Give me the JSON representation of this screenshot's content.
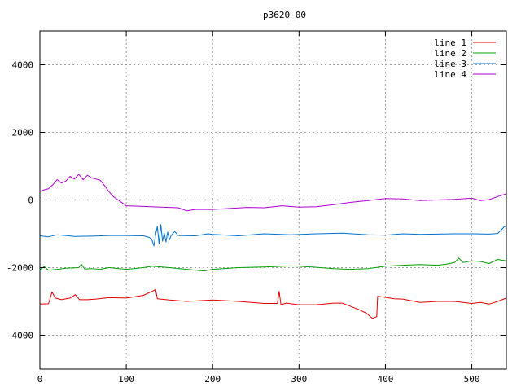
{
  "chart_data": {
    "type": "line",
    "title": "p3620_00",
    "xlabel": "",
    "ylabel": "",
    "xlim": [
      0,
      540
    ],
    "ylim": [
      -5000,
      5000
    ],
    "x_ticks": [
      0,
      100,
      200,
      300,
      400,
      500
    ],
    "y_ticks": [
      -4000,
      -2000,
      0,
      2000,
      4000
    ],
    "grid": true,
    "legend_position": "top-right",
    "series": [
      {
        "name": "line 1",
        "color": "#e00000",
        "points": [
          [
            0,
            -3080
          ],
          [
            10,
            -3070
          ],
          [
            14,
            -2720
          ],
          [
            18,
            -2900
          ],
          [
            25,
            -2950
          ],
          [
            35,
            -2900
          ],
          [
            41,
            -2800
          ],
          [
            46,
            -2950
          ],
          [
            55,
            -2950
          ],
          [
            65,
            -2930
          ],
          [
            80,
            -2890
          ],
          [
            100,
            -2900
          ],
          [
            110,
            -2860
          ],
          [
            120,
            -2820
          ],
          [
            130,
            -2700
          ],
          [
            134,
            -2650
          ],
          [
            136,
            -2920
          ],
          [
            150,
            -2960
          ],
          [
            170,
            -3000
          ],
          [
            200,
            -2960
          ],
          [
            230,
            -3000
          ],
          [
            260,
            -3060
          ],
          [
            275,
            -3060
          ],
          [
            277,
            -2700
          ],
          [
            279,
            -3100
          ],
          [
            285,
            -3050
          ],
          [
            300,
            -3100
          ],
          [
            320,
            -3100
          ],
          [
            340,
            -3050
          ],
          [
            350,
            -3050
          ],
          [
            360,
            -3150
          ],
          [
            370,
            -3250
          ],
          [
            378,
            -3350
          ],
          [
            385,
            -3500
          ],
          [
            390,
            -3450
          ],
          [
            391,
            -2850
          ],
          [
            395,
            -2860
          ],
          [
            410,
            -2920
          ],
          [
            420,
            -2930
          ],
          [
            440,
            -3030
          ],
          [
            460,
            -3000
          ],
          [
            480,
            -3000
          ],
          [
            500,
            -3060
          ],
          [
            510,
            -3030
          ],
          [
            520,
            -3080
          ],
          [
            530,
            -3000
          ],
          [
            540,
            -2900
          ]
        ]
      },
      {
        "name": "line 2",
        "color": "#00a000",
        "points": [
          [
            0,
            -2060
          ],
          [
            5,
            -1970
          ],
          [
            10,
            -2080
          ],
          [
            20,
            -2050
          ],
          [
            30,
            -2020
          ],
          [
            45,
            -2000
          ],
          [
            48,
            -1900
          ],
          [
            52,
            -2040
          ],
          [
            60,
            -2030
          ],
          [
            70,
            -2050
          ],
          [
            80,
            -2000
          ],
          [
            100,
            -2050
          ],
          [
            120,
            -2000
          ],
          [
            130,
            -1960
          ],
          [
            150,
            -2000
          ],
          [
            170,
            -2050
          ],
          [
            190,
            -2100
          ],
          [
            200,
            -2050
          ],
          [
            230,
            -2000
          ],
          [
            260,
            -1980
          ],
          [
            290,
            -1950
          ],
          [
            300,
            -1960
          ],
          [
            320,
            -1990
          ],
          [
            340,
            -2030
          ],
          [
            360,
            -2050
          ],
          [
            380,
            -2030
          ],
          [
            400,
            -1960
          ],
          [
            420,
            -1930
          ],
          [
            440,
            -1910
          ],
          [
            460,
            -1930
          ],
          [
            470,
            -1900
          ],
          [
            480,
            -1850
          ],
          [
            485,
            -1720
          ],
          [
            490,
            -1850
          ],
          [
            500,
            -1800
          ],
          [
            510,
            -1820
          ],
          [
            520,
            -1880
          ],
          [
            530,
            -1760
          ],
          [
            540,
            -1800
          ]
        ]
      },
      {
        "name": "line 3",
        "color": "#0070d0",
        "points": [
          [
            0,
            -1060
          ],
          [
            10,
            -1090
          ],
          [
            20,
            -1030
          ],
          [
            30,
            -1050
          ],
          [
            40,
            -1080
          ],
          [
            60,
            -1070
          ],
          [
            80,
            -1050
          ],
          [
            100,
            -1050
          ],
          [
            120,
            -1060
          ],
          [
            127,
            -1110
          ],
          [
            130,
            -1200
          ],
          [
            132,
            -1360
          ],
          [
            134,
            -1020
          ],
          [
            136,
            -780
          ],
          [
            138,
            -1300
          ],
          [
            140,
            -730
          ],
          [
            142,
            -1220
          ],
          [
            144,
            -980
          ],
          [
            146,
            -1240
          ],
          [
            148,
            -950
          ],
          [
            150,
            -1180
          ],
          [
            152,
            -1050
          ],
          [
            156,
            -930
          ],
          [
            160,
            -1050
          ],
          [
            180,
            -1060
          ],
          [
            195,
            -1000
          ],
          [
            200,
            -1020
          ],
          [
            230,
            -1060
          ],
          [
            260,
            -1000
          ],
          [
            290,
            -1030
          ],
          [
            320,
            -1000
          ],
          [
            350,
            -980
          ],
          [
            380,
            -1030
          ],
          [
            400,
            -1040
          ],
          [
            420,
            -1000
          ],
          [
            440,
            -1020
          ],
          [
            460,
            -1010
          ],
          [
            480,
            -1000
          ],
          [
            500,
            -1000
          ],
          [
            520,
            -1010
          ],
          [
            530,
            -990
          ],
          [
            538,
            -780
          ],
          [
            540,
            -800
          ]
        ]
      },
      {
        "name": "line 4",
        "color": "#b000d0",
        "points": [
          [
            0,
            250
          ],
          [
            5,
            300
          ],
          [
            10,
            330
          ],
          [
            15,
            450
          ],
          [
            20,
            600
          ],
          [
            25,
            500
          ],
          [
            30,
            560
          ],
          [
            35,
            700
          ],
          [
            40,
            620
          ],
          [
            45,
            760
          ],
          [
            50,
            600
          ],
          [
            55,
            730
          ],
          [
            60,
            650
          ],
          [
            65,
            620
          ],
          [
            70,
            580
          ],
          [
            75,
            420
          ],
          [
            80,
            240
          ],
          [
            85,
            100
          ],
          [
            90,
            10
          ],
          [
            95,
            -80
          ],
          [
            100,
            -170
          ],
          [
            110,
            -180
          ],
          [
            120,
            -190
          ],
          [
            140,
            -210
          ],
          [
            160,
            -230
          ],
          [
            170,
            -320
          ],
          [
            180,
            -280
          ],
          [
            200,
            -280
          ],
          [
            220,
            -250
          ],
          [
            240,
            -220
          ],
          [
            260,
            -230
          ],
          [
            280,
            -170
          ],
          [
            300,
            -210
          ],
          [
            320,
            -200
          ],
          [
            340,
            -140
          ],
          [
            360,
            -70
          ],
          [
            380,
            -20
          ],
          [
            400,
            40
          ],
          [
            420,
            30
          ],
          [
            440,
            -20
          ],
          [
            460,
            0
          ],
          [
            480,
            20
          ],
          [
            500,
            50
          ],
          [
            510,
            -20
          ],
          [
            520,
            10
          ],
          [
            530,
            100
          ],
          [
            540,
            180
          ]
        ]
      }
    ]
  }
}
